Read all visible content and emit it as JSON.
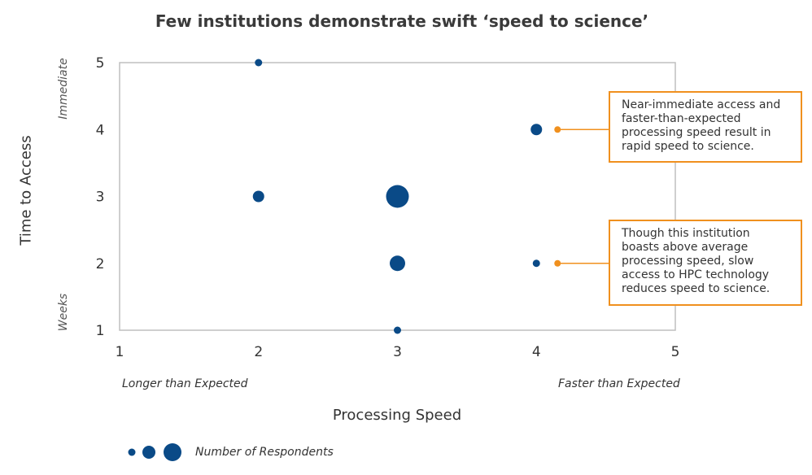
{
  "chart_data": {
    "type": "scatter",
    "title": "Few institutions demonstrate swift ‘speed to science’",
    "xlabel": "Processing Speed",
    "ylabel": "Time to Access",
    "xlim": [
      1,
      5
    ],
    "ylim": [
      1,
      5
    ],
    "xticks": [
      "1",
      "2",
      "3",
      "4",
      "5"
    ],
    "yticks": [
      "1",
      "2",
      "3",
      "4",
      "5"
    ],
    "x_low_label": "Longer than Expected",
    "x_high_label": "Faster than Expected",
    "y_low_label": "Weeks",
    "y_high_label": "Immediate",
    "legend_label": "Number of Respondents",
    "colors": {
      "marker": "#0a4a87",
      "callout": "#f0901e",
      "axis": "#bfbfbf"
    },
    "points": [
      {
        "x": 2,
        "y": 5,
        "size": 1
      },
      {
        "x": 2,
        "y": 3,
        "size": 2
      },
      {
        "x": 3,
        "y": 3,
        "size": 5
      },
      {
        "x": 3,
        "y": 2,
        "size": 3
      },
      {
        "x": 3,
        "y": 1,
        "size": 1
      },
      {
        "x": 4,
        "y": 4,
        "size": 2
      },
      {
        "x": 4,
        "y": 2,
        "size": 1
      }
    ],
    "annotations": [
      {
        "text": "Near-immediate access and faster-than-expected processing speed result in rapid speed to science.",
        "x": 4,
        "y": 4
      },
      {
        "text": "Though this institution boasts above average processing speed, slow access to HPC technology reduces speed to science.",
        "x": 4,
        "y": 2
      }
    ]
  }
}
